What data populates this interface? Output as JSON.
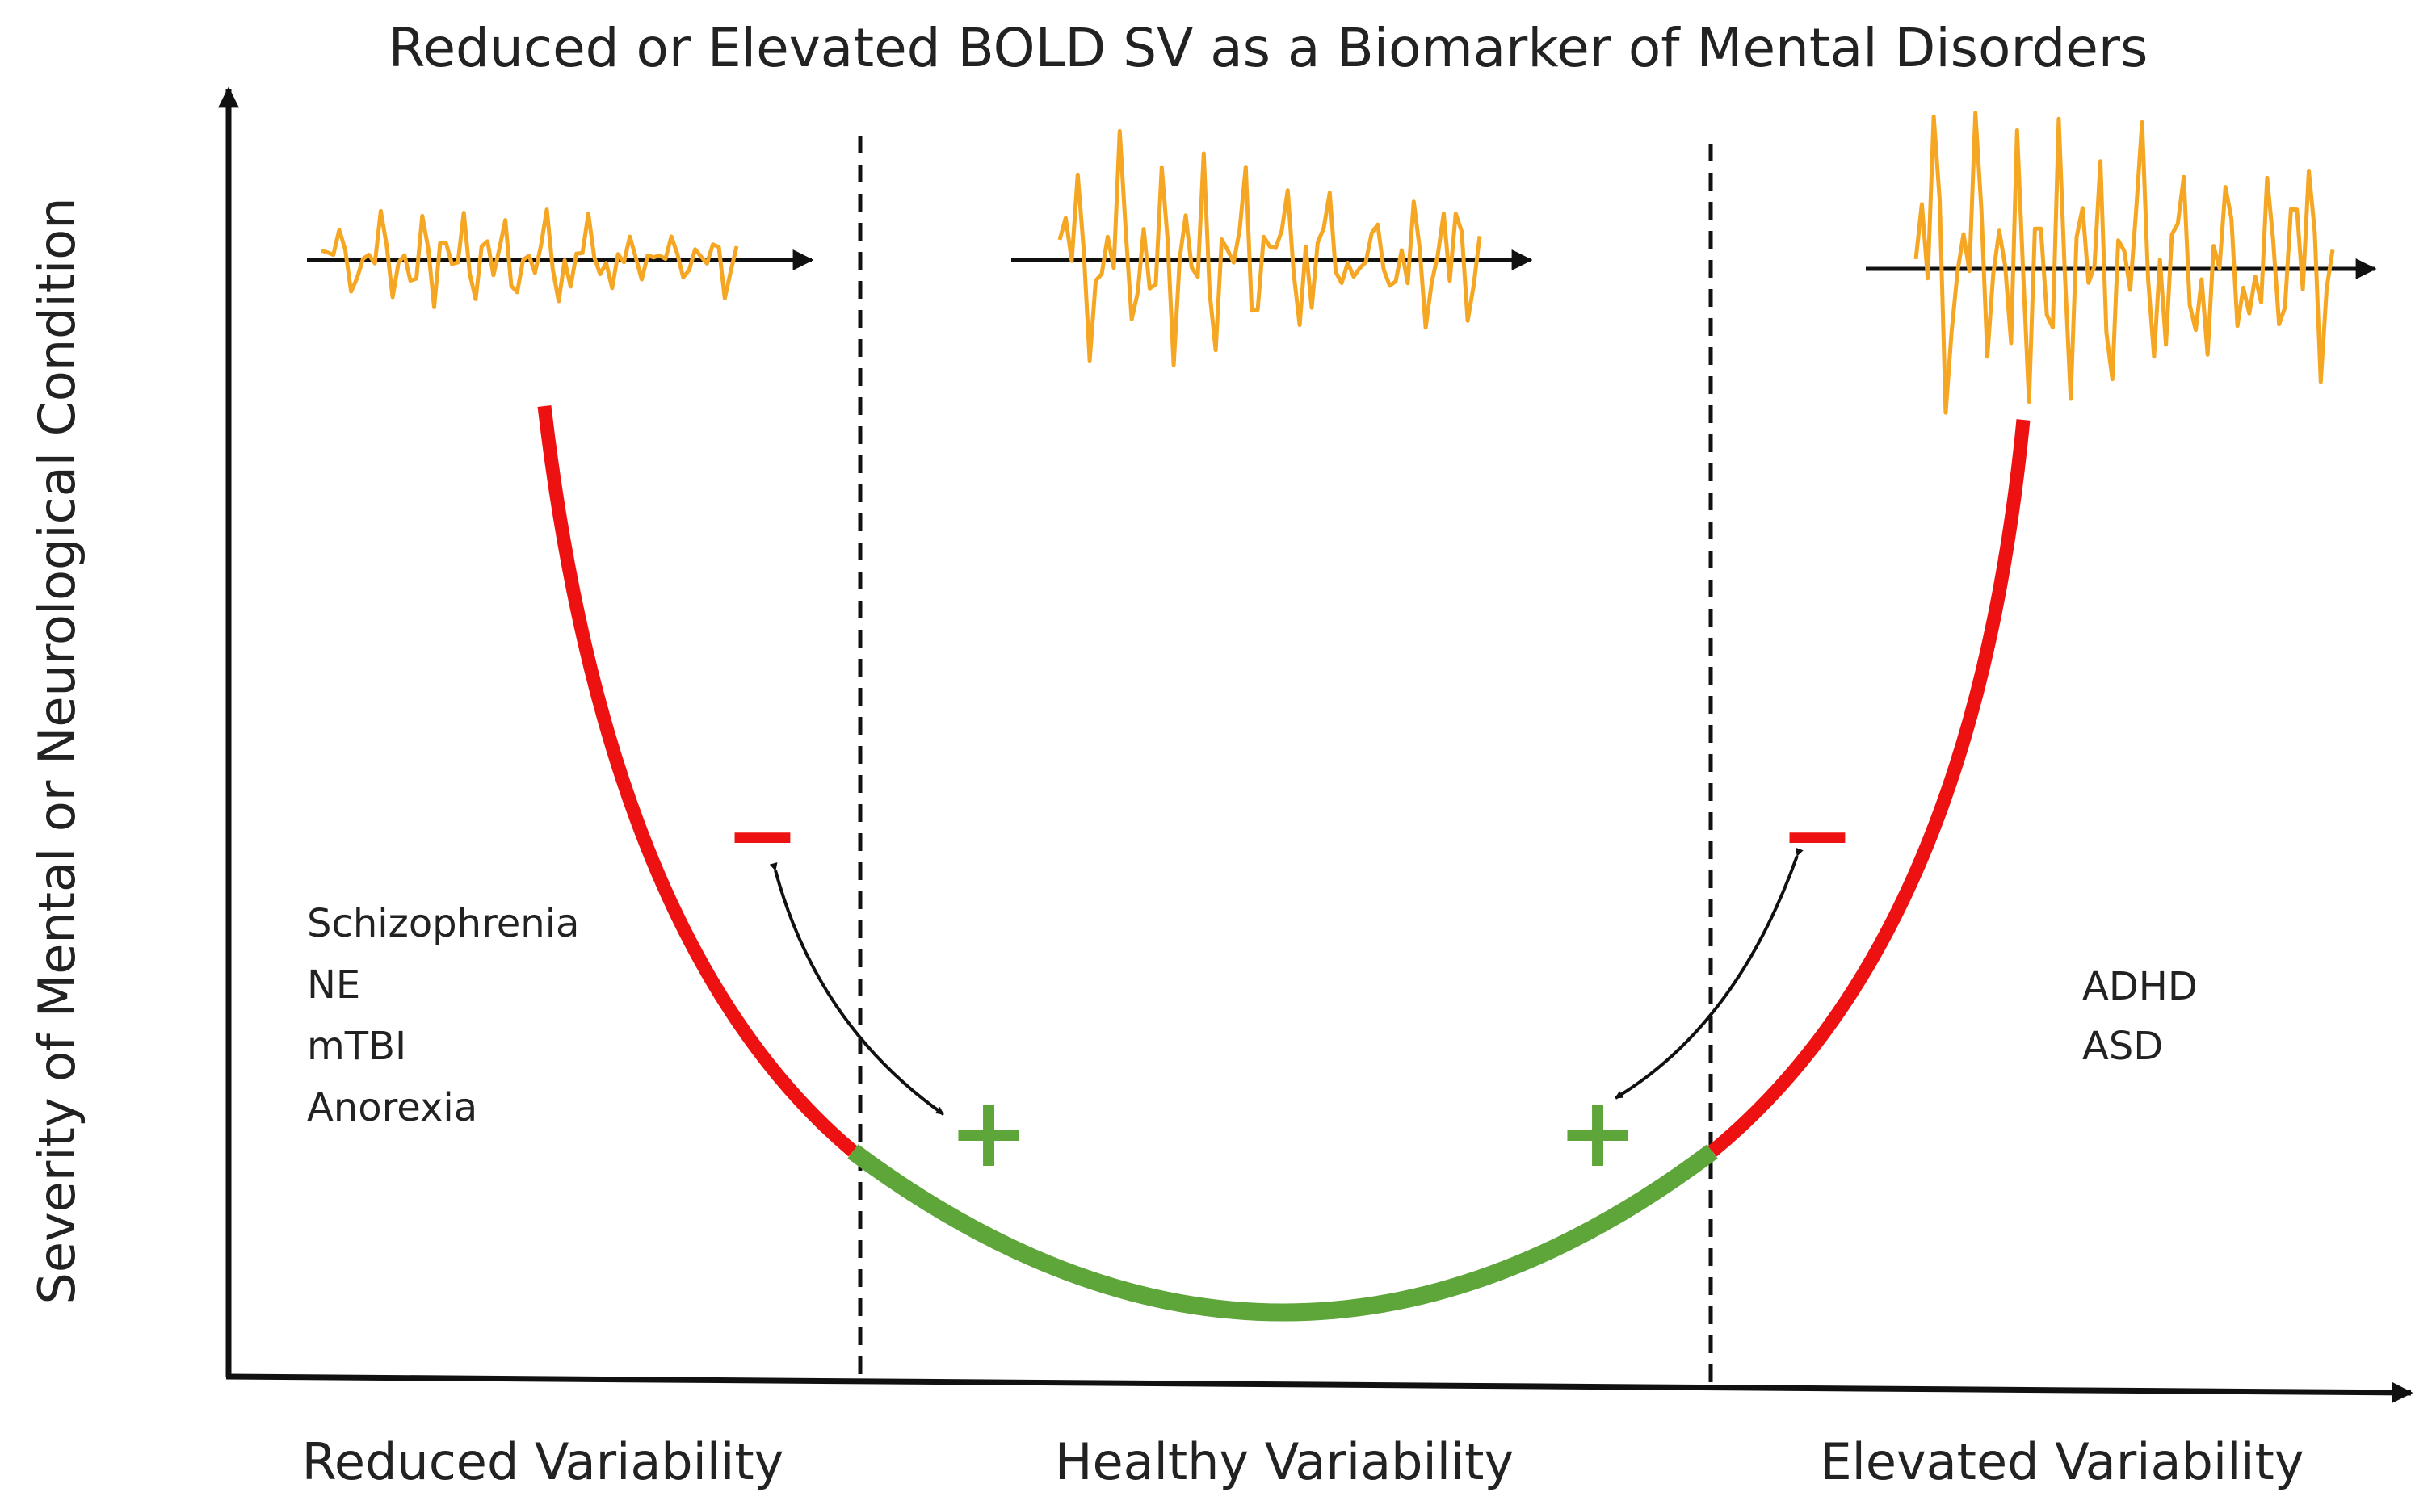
{
  "title": "Reduced or Elevated BOLD SV as a Biomarker of Mental Disorders",
  "y_axis_label": "Severity of Mental or Neurological Condition",
  "x_categories": [
    "Reduced Variability",
    "Healthy Variability",
    "Elevated Variability"
  ],
  "left_disorders": [
    "Schizophrenia",
    "NE",
    "mTBI",
    "Anorexia"
  ],
  "right_disorders": [
    "ADHD",
    "ASD"
  ],
  "signs": {
    "minus": "−",
    "plus": "+"
  },
  "colors": {
    "unhealthy": "#ee1111",
    "healthy": "#5ea63a",
    "signal": "#f5a623",
    "axis": "#111111",
    "text": "#222222"
  },
  "signals": {
    "reduced": {
      "amplitude": "low"
    },
    "healthy": {
      "amplitude": "medium"
    },
    "elevated": {
      "amplitude": "high"
    }
  }
}
